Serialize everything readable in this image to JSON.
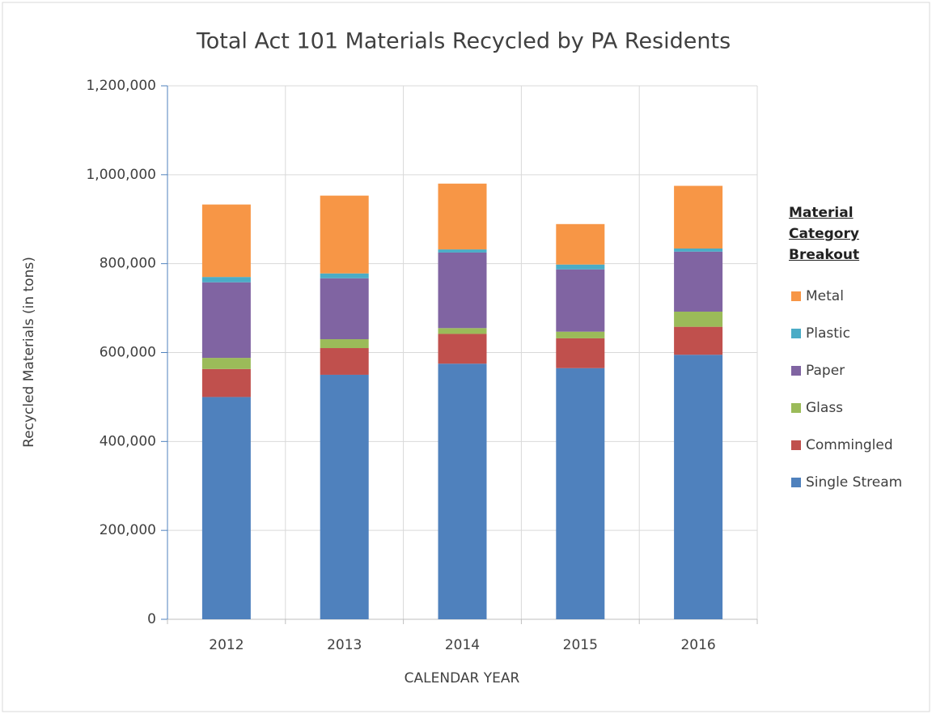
{
  "chart_data": {
    "type": "stacked_bar",
    "title": "Total Act 101 Materials Recycled by PA Residents",
    "x_label": "CALENDAR YEAR",
    "y_label": "Recycled Materials (in tons)",
    "legend_title": "Material Category Breakout",
    "categories": [
      "2012",
      "2013",
      "2014",
      "2015",
      "2016"
    ],
    "series": [
      {
        "name": "Single Stream",
        "color": "#4f81bd",
        "values": [
          500000,
          550000,
          575000,
          565000,
          595000
        ]
      },
      {
        "name": "Commingled",
        "color": "#c0504d",
        "values": [
          63000,
          60000,
          67000,
          67000,
          63000
        ]
      },
      {
        "name": "Glass",
        "color": "#9bbb59",
        "values": [
          25000,
          20000,
          13000,
          15000,
          34000
        ]
      },
      {
        "name": "Paper",
        "color": "#8064a2",
        "values": [
          170000,
          137000,
          170000,
          140000,
          135000
        ]
      },
      {
        "name": "Plastic",
        "color": "#4bacc6",
        "values": [
          12000,
          11000,
          7000,
          11000,
          7000
        ]
      },
      {
        "name": "Metal",
        "color": "#f79646",
        "values": [
          163000,
          175000,
          148000,
          91000,
          141000
        ]
      }
    ],
    "ylim": [
      0,
      1200000
    ],
    "yticks": [
      0,
      {
        "value": 200000,
        "label": "200,000"
      },
      {
        "value": 400000,
        "label": "400,000"
      },
      {
        "value": 600000,
        "label": "600,000"
      },
      {
        "value": 800000,
        "label": "800,000"
      },
      {
        "value": 1000000,
        "label": "1,000,000"
      },
      {
        "value": 1200000,
        "label": "1,200,000"
      }
    ],
    "grid": true,
    "legend": "right"
  }
}
